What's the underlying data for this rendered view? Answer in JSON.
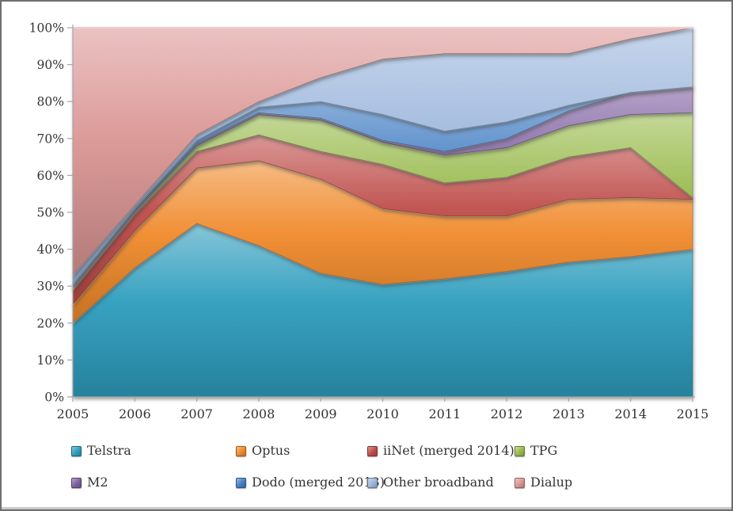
{
  "chart": {
    "background": "#FFFFFF",
    "frame_border_color": "#6F6F6F",
    "axis_color": "#A6A6A6",
    "label_color": "#333333"
  },
  "y_axis": {
    "tick_labels": [
      "0%",
      "10%",
      "20%",
      "30%",
      "40%",
      "50%",
      "60%",
      "70%",
      "80%",
      "90%",
      "100%"
    ]
  },
  "x_axis": {
    "tick_labels": [
      "2005",
      "2006",
      "2007",
      "2008",
      "2009",
      "2010",
      "2011",
      "2012",
      "2013",
      "2014",
      "2015"
    ]
  },
  "chart_data": {
    "type": "area",
    "stacked": true,
    "percent_total": true,
    "title": "",
    "xlabel": "",
    "ylabel": "",
    "x": [
      2005,
      2006,
      2007,
      2008,
      2009,
      2010,
      2011,
      2012,
      2013,
      2014,
      2015
    ],
    "ylim": [
      0,
      100
    ],
    "y_tick_step": 10,
    "grid": false,
    "legend_position": "bottom",
    "legend_rows": 2,
    "series": [
      {
        "name": "Telstra",
        "color": "#2E9DBE",
        "values": [
          20,
          35,
          47,
          41,
          33.5,
          30.5,
          32,
          34,
          36.5,
          38,
          40
        ]
      },
      {
        "name": "Optus",
        "color": "#F08A2B",
        "values": [
          5,
          10,
          15,
          23,
          25.5,
          20.5,
          17,
          15,
          17,
          16,
          13.5
        ]
      },
      {
        "name": "iiNet (merged 2014)",
        "color": "#BE4B48",
        "values": [
          4,
          4.5,
          4.5,
          7,
          7.5,
          12,
          9,
          10.5,
          11.5,
          13.5,
          0.5
        ]
      },
      {
        "name": "TPG",
        "color": "#99BB4E",
        "values": [
          0.5,
          0.5,
          1.5,
          5.5,
          8.5,
          6,
          7.5,
          8,
          8.5,
          9,
          23
        ]
      },
      {
        "name": "M2",
        "color": "#7D5FA0",
        "values": [
          0.5,
          0.5,
          0.5,
          0.5,
          0.5,
          0.5,
          1,
          2.5,
          4,
          6,
          7
        ]
      },
      {
        "name": "Dodo (merged 2013)",
        "color": "#4580C4",
        "values": [
          0.5,
          0.5,
          1,
          1.5,
          4.5,
          7,
          5.5,
          4.5,
          1.5,
          0,
          0
        ]
      },
      {
        "name": "Other broadband",
        "color": "#9DB7DC",
        "values": [
          2.5,
          1,
          1.5,
          1.5,
          6.5,
          15,
          21,
          18.5,
          14,
          14.5,
          16
        ]
      },
      {
        "name": "Dialup",
        "color": "#DA9694",
        "values": [
          67,
          48,
          29,
          20,
          13.5,
          8.5,
          7,
          7,
          7,
          3,
          0
        ]
      }
    ]
  }
}
